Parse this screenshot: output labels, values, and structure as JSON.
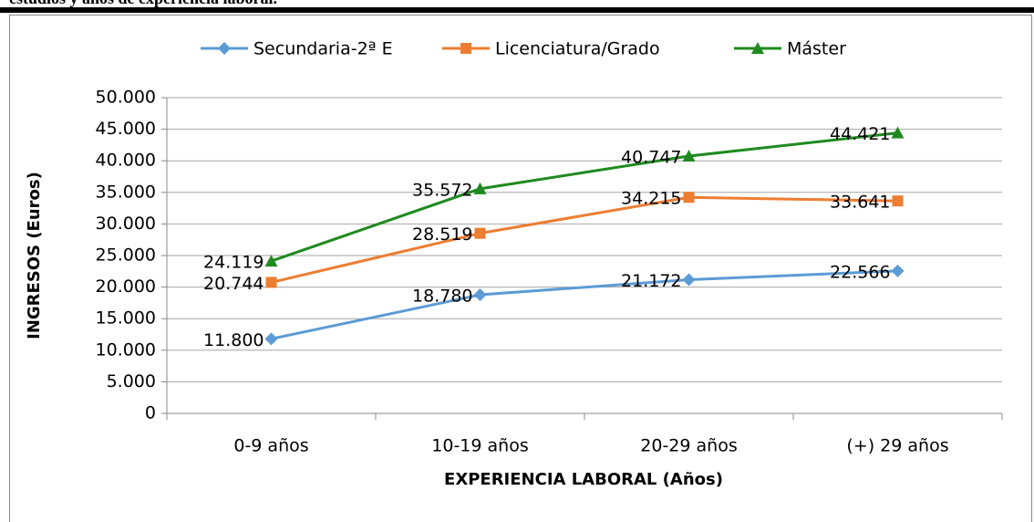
{
  "caption": "estudios y años de experiencia laboral.",
  "chart_data": {
    "type": "line",
    "ylabel": "INGRESOS (Euros)",
    "xlabel": "EXPERIENCIA LABORAL (Años)",
    "categories": [
      "0-9 años",
      "10-19 años",
      "20-29 años",
      "(+) 29 años"
    ],
    "series": [
      {
        "name": "Secundaria-2ª E",
        "color": "#5b9bd5",
        "marker": "diamond",
        "values": [
          11800,
          18780,
          21172,
          22566
        ],
        "value_labels": [
          "11.800",
          "18.780",
          "21.172",
          "22.566"
        ]
      },
      {
        "name": "Licenciatura/Grado",
        "color": "#ed7d31",
        "marker": "square",
        "values": [
          20744,
          28519,
          34215,
          33641
        ],
        "value_labels": [
          "20.744",
          "28.519",
          "34.215",
          "33.641"
        ]
      },
      {
        "name": "Máster",
        "color": "#1f8a1f",
        "marker": "triangle",
        "values": [
          24119,
          35572,
          40747,
          44421
        ],
        "value_labels": [
          "24.119",
          "35.572",
          "40.747",
          "44.421"
        ]
      }
    ],
    "ylim": [
      0,
      50000
    ],
    "yticks": [
      0,
      {
        "value": 5000,
        "label": "5.000"
      },
      {
        "value": 10000,
        "label": "10.000"
      },
      {
        "value": 15000,
        "label": "15.000"
      },
      {
        "value": 20000,
        "label": "20.000"
      },
      {
        "value": 25000,
        "label": "25.000"
      },
      {
        "value": 30000,
        "label": "30.000"
      },
      {
        "value": 35000,
        "label": "35.000"
      },
      {
        "value": 40000,
        "label": "40.000"
      },
      {
        "value": 45000,
        "label": "45.000"
      },
      {
        "value": 50000,
        "label": "50.000"
      }
    ],
    "grid": true,
    "legend": "top"
  }
}
